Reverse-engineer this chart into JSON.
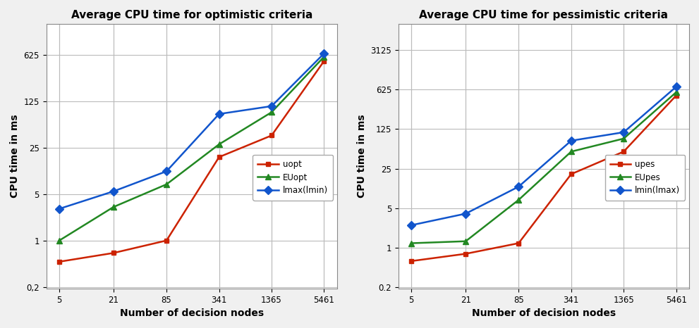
{
  "left_title": "Average CPU time for optimistic criteria",
  "right_title": "Average CPU time for pessimistic criteria",
  "xlabel": "Number of decision nodes",
  "ylabel": "CPU time in ms",
  "x_ticks": [
    5,
    21,
    85,
    341,
    1365,
    5461
  ],
  "x_tick_labels": [
    "5",
    "21",
    "85",
    "341",
    "1365",
    "5461"
  ],
  "left": {
    "uopt": [
      0.48,
      0.65,
      1.0,
      18.0,
      38.0,
      500.0
    ],
    "EUopt": [
      1.0,
      3.2,
      7.0,
      28.0,
      85.0,
      580.0
    ],
    "lmax_lmin": [
      3.0,
      5.5,
      11.0,
      80.0,
      105.0,
      650.0
    ]
  },
  "right": {
    "upes": [
      0.58,
      0.78,
      1.2,
      20.0,
      50.0,
      490.0
    ],
    "EUpes": [
      1.2,
      1.3,
      7.0,
      50.0,
      85.0,
      560.0
    ],
    "lmin_lmax": [
      2.5,
      4.0,
      12.0,
      78.0,
      110.0,
      700.0
    ]
  },
  "left_yticks": [
    0.2,
    1,
    5,
    25,
    125,
    625
  ],
  "left_ytick_labels": [
    "0,2",
    "1",
    "5",
    "25",
    "125",
    "625"
  ],
  "right_yticks": [
    0.2,
    1,
    5,
    25,
    125,
    625,
    3125
  ],
  "right_ytick_labels": [
    "0.2",
    "1",
    "5",
    "25",
    "125",
    "625",
    "3125"
  ],
  "color_red": "#cc2200",
  "color_green": "#228822",
  "color_blue": "#1155cc",
  "bg_color": "#ffffff",
  "grid_color": "#bbbbbb",
  "fig_bg": "#f0f0f0"
}
